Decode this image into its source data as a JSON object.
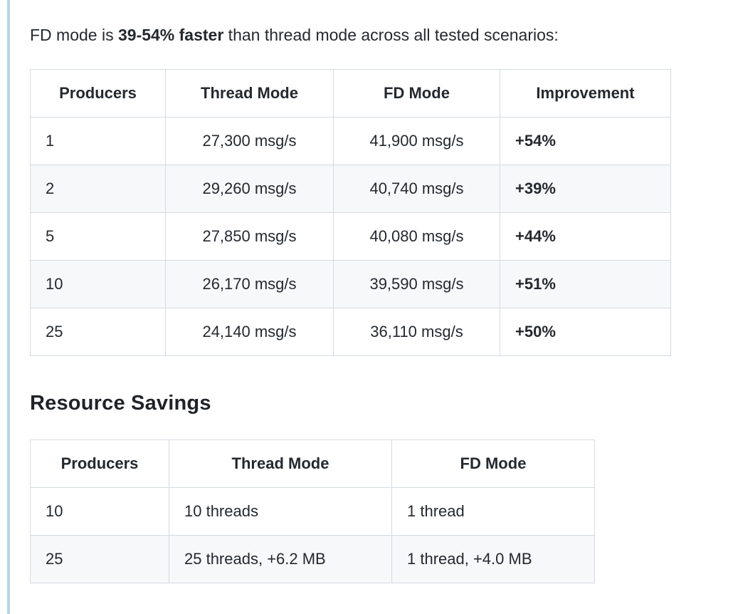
{
  "intro": {
    "prefix": "FD mode is ",
    "highlight": "39-54% faster",
    "suffix": " than thread mode across all tested scenarios:"
  },
  "performance_table": {
    "columns": [
      "Producers",
      "Thread Mode",
      "FD Mode",
      "Improvement"
    ],
    "rows": [
      [
        "1",
        "27,300 msg/s",
        "41,900 msg/s",
        "+54%"
      ],
      [
        "2",
        "29,260 msg/s",
        "40,740 msg/s",
        "+39%"
      ],
      [
        "5",
        "27,850 msg/s",
        "40,080 msg/s",
        "+44%"
      ],
      [
        "10",
        "26,170 msg/s",
        "39,590 msg/s",
        "+51%"
      ],
      [
        "25",
        "24,140 msg/s",
        "36,110 msg/s",
        "+50%"
      ]
    ]
  },
  "resource_heading": "Resource Savings",
  "resource_table": {
    "columns": [
      "Producers",
      "Thread Mode",
      "FD Mode"
    ],
    "rows": [
      [
        "10",
        "10 threads",
        "1 thread"
      ],
      [
        "25",
        "25 threads, +6.2 MB",
        "1 thread, +4.0 MB"
      ]
    ]
  },
  "colors": {
    "accent_line": "#b9d5e8",
    "row_stripe": "#f6f8fa",
    "table_border": "#d5dbe1",
    "text": "#24292f"
  }
}
